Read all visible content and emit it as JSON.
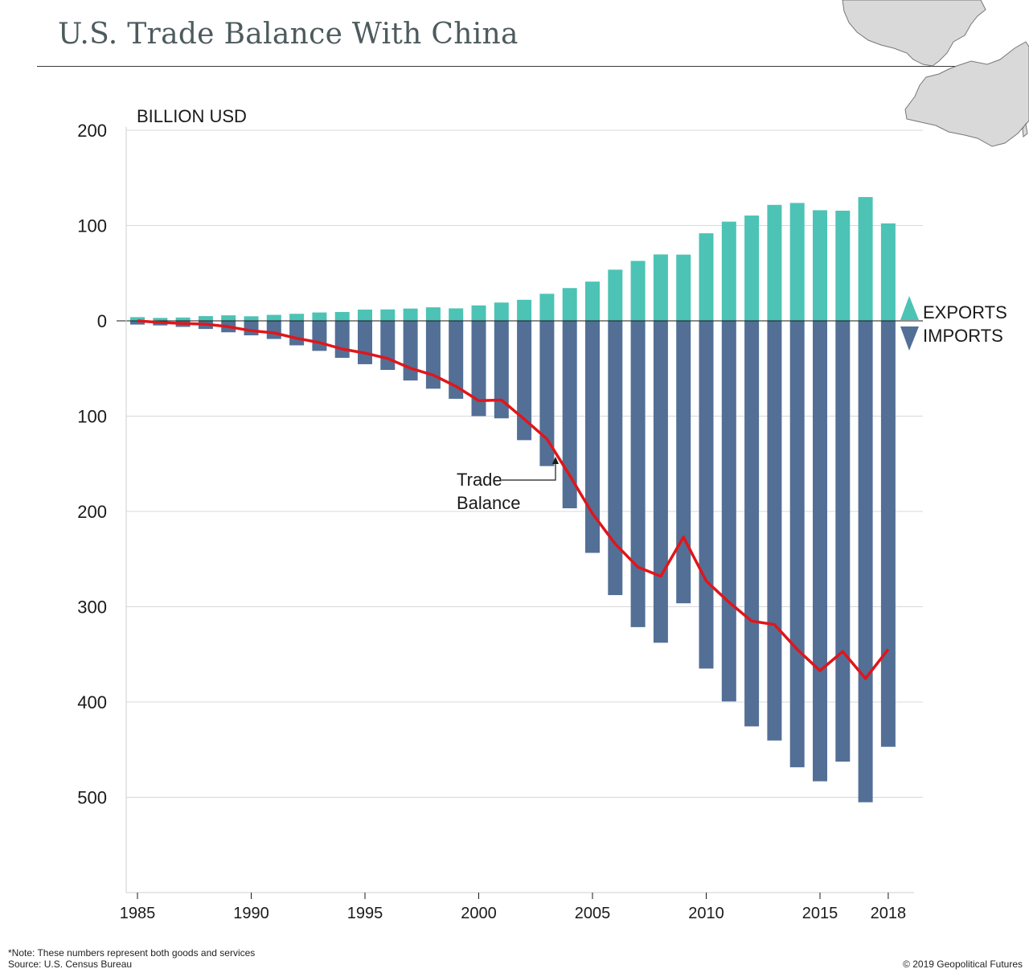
{
  "title": "U.S. Trade Balance With China",
  "colors": {
    "exports": "#4cc3b5",
    "imports": "#536f96",
    "balance": "#e0161b",
    "grid": "#d8d8d8",
    "map_land": "#d9d9d9",
    "map_stroke": "#777777"
  },
  "icons": {
    "map": "us-china-map-icon",
    "exports": "up-triangle-icon",
    "imports": "down-triangle-icon"
  },
  "legend": {
    "exports": "EXPORTS",
    "imports": "IMPORTS"
  },
  "annotation": {
    "line1": "Trade",
    "line2": "Balance"
  },
  "footer": {
    "note": "*Note: These numbers represent both goods and services",
    "source": "Source: U.S. Census Bureau",
    "copyright": "© 2019 Geopolitical Futures"
  },
  "chart_data": {
    "type": "bar",
    "ylabel": "BILLION USD",
    "ylim": [
      -600,
      200
    ],
    "y_ticks": [
      200,
      100,
      0,
      -100,
      -200,
      -300,
      -400,
      -500
    ],
    "y_tick_labels": [
      "200",
      "100",
      "0",
      "100",
      "200",
      "300",
      "400",
      "500"
    ],
    "x_ticks": [
      "1985",
      "1990",
      "1995",
      "2000",
      "2005",
      "2010",
      "2015",
      "2018"
    ],
    "grid": true,
    "legend_position": "right",
    "categories": [
      1985,
      1986,
      1987,
      1988,
      1989,
      1990,
      1991,
      1992,
      1993,
      1994,
      1995,
      1996,
      1997,
      1998,
      1999,
      2000,
      2001,
      2002,
      2003,
      2004,
      2005,
      2006,
      2007,
      2008,
      2009,
      2010,
      2011,
      2012,
      2013,
      2014,
      2015,
      2016,
      2017,
      2018
    ],
    "series": [
      {
        "name": "EXPORTS",
        "type": "bar",
        "values": [
          3.9,
          3.1,
          3.5,
          5.0,
          5.8,
          4.8,
          6.3,
          7.4,
          8.8,
          9.3,
          11.8,
          12.0,
          12.9,
          14.2,
          13.1,
          16.2,
          19.2,
          22.1,
          28.4,
          34.4,
          41.2,
          53.7,
          62.9,
          69.7,
          69.5,
          91.9,
          104.1,
          110.5,
          121.7,
          123.7,
          116.1,
          115.6,
          129.9,
          102.3
        ]
      },
      {
        "name": "IMPORTS",
        "type": "bar",
        "values": [
          -3.9,
          -4.8,
          -6.3,
          -8.5,
          -12.0,
          -15.2,
          -19.0,
          -25.7,
          -31.5,
          -38.8,
          -45.5,
          -51.5,
          -62.6,
          -71.2,
          -81.8,
          -100.0,
          -102.3,
          -125.2,
          -152.4,
          -196.7,
          -243.5,
          -287.8,
          -321.4,
          -337.8,
          -296.4,
          -364.9,
          -399.4,
          -425.6,
          -440.4,
          -468.5,
          -483.2,
          -462.6,
          -505.2,
          -447.0
        ]
      },
      {
        "name": "Trade Balance",
        "type": "line",
        "values": [
          0,
          -1.7,
          -2.8,
          -3.5,
          -6.2,
          -10.4,
          -12.7,
          -18.3,
          -22.8,
          -29.5,
          -33.8,
          -39.5,
          -49.7,
          -57.0,
          -68.7,
          -83.8,
          -83.1,
          -103.1,
          -124.0,
          -162.3,
          -202.3,
          -234.1,
          -258.5,
          -268.0,
          -226.9,
          -273.0,
          -295.3,
          -315.1,
          -318.7,
          -344.8,
          -367.1,
          -347.0,
          -375.3,
          -344.7
        ]
      }
    ]
  }
}
